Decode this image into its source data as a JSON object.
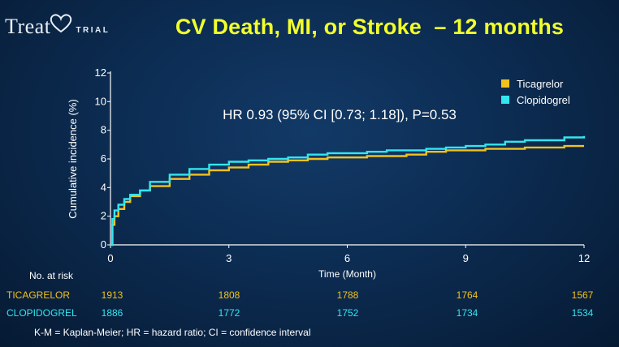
{
  "logo": {
    "main": "Treat",
    "sub": "TRIAL"
  },
  "title": "CV Death, MI, or Stroke  – 12 months",
  "annotation": "HR 0.93 (95% CI [0.73; 1.18]), P=0.53",
  "footnote": "K-M = Kaplan-Meier; HR = hazard ratio; CI = confidence interval",
  "colors": {
    "ticagrelor": "#f2c21c",
    "clopidogrel": "#33e6ef",
    "title": "#f3ff2a"
  },
  "chart_data": {
    "type": "line",
    "xlabel": "Time (Month)",
    "ylabel": "Cumulative incidence (%)",
    "xlim": [
      0,
      12
    ],
    "ylim": [
      0,
      12
    ],
    "xticks": [
      0,
      3,
      6,
      9,
      12
    ],
    "yticks": [
      0,
      2,
      4,
      6,
      8,
      10,
      12
    ],
    "grid": false,
    "legend_position": "top-right",
    "series": [
      {
        "name": "Ticagrelor",
        "color": "#f2c21c",
        "x": [
          0,
          0.05,
          0.1,
          0.2,
          0.35,
          0.5,
          0.75,
          1,
          1.5,
          2,
          2.5,
          3,
          3.5,
          4,
          4.5,
          5,
          5.5,
          6,
          6.5,
          7,
          7.5,
          8,
          8.5,
          9,
          9.5,
          10,
          10.5,
          11,
          11.5,
          12
        ],
        "y": [
          0,
          1.4,
          2.0,
          2.5,
          3.0,
          3.4,
          3.8,
          4.1,
          4.6,
          4.9,
          5.2,
          5.4,
          5.6,
          5.8,
          5.9,
          6.0,
          6.1,
          6.1,
          6.2,
          6.2,
          6.3,
          6.5,
          6.6,
          6.6,
          6.7,
          6.7,
          6.8,
          6.8,
          6.9,
          6.9
        ]
      },
      {
        "name": "Clopidogrel",
        "color": "#33e6ef",
        "x": [
          0,
          0.05,
          0.1,
          0.2,
          0.35,
          0.5,
          0.75,
          1,
          1.5,
          2,
          2.5,
          3,
          3.5,
          4,
          4.5,
          5,
          5.5,
          6,
          6.5,
          7,
          7.5,
          8,
          8.5,
          9,
          9.5,
          10,
          10.5,
          11,
          11.5,
          12
        ],
        "y": [
          0,
          1.8,
          2.4,
          2.8,
          3.2,
          3.5,
          3.8,
          4.4,
          4.9,
          5.3,
          5.6,
          5.8,
          5.9,
          6.0,
          6.1,
          6.3,
          6.4,
          6.4,
          6.5,
          6.6,
          6.6,
          6.7,
          6.8,
          6.9,
          7.0,
          7.2,
          7.3,
          7.3,
          7.5,
          7.6
        ]
      }
    ]
  },
  "risk_table": {
    "title": "No. at risk",
    "months": [
      0,
      3,
      6,
      9,
      12
    ],
    "rows": [
      {
        "label": "TICAGRELOR",
        "values": [
          "1913",
          "1808",
          "1788",
          "1764",
          "1567"
        ]
      },
      {
        "label": "CLOPIDOGREL",
        "values": [
          "1886",
          "1772",
          "1752",
          "1734",
          "1534"
        ]
      }
    ]
  }
}
